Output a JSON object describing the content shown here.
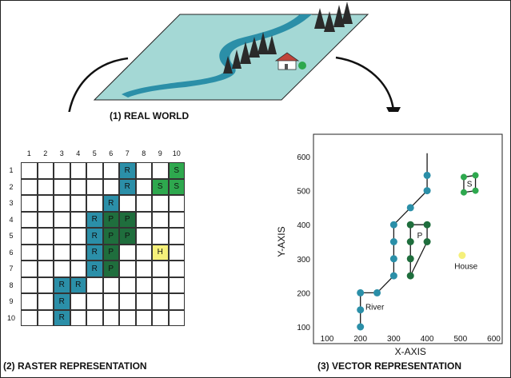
{
  "captions": {
    "real_world": "(1) REAL WORLD",
    "raster": "(2) RASTER REPRESENTATION",
    "vector": "(3) VECTOR REPRESENTATION"
  },
  "raster": {
    "column_labels": [
      "1",
      "2",
      "3",
      "4",
      "5",
      "6",
      "7",
      "8",
      "9",
      "10"
    ],
    "row_labels": [
      "1",
      "2",
      "3",
      "4",
      "5",
      "6",
      "7",
      "8",
      "9",
      "10"
    ],
    "colors": {
      "R": "#2b8fa8",
      "P": "#1f6e3d",
      "S": "#2ea84e",
      "H": "#f5f07a",
      "empty": "#ffffff"
    },
    "cells": [
      {
        "row": 1,
        "col": 7,
        "code": "R"
      },
      {
        "row": 1,
        "col": 10,
        "code": "S"
      },
      {
        "row": 2,
        "col": 7,
        "code": "R"
      },
      {
        "row": 2,
        "col": 9,
        "code": "S"
      },
      {
        "row": 2,
        "col": 10,
        "code": "S"
      },
      {
        "row": 3,
        "col": 6,
        "code": "R"
      },
      {
        "row": 4,
        "col": 5,
        "code": "R"
      },
      {
        "row": 4,
        "col": 6,
        "code": "P"
      },
      {
        "row": 4,
        "col": 7,
        "code": "P"
      },
      {
        "row": 5,
        "col": 5,
        "code": "R"
      },
      {
        "row": 5,
        "col": 6,
        "code": "P"
      },
      {
        "row": 5,
        "col": 7,
        "code": "P"
      },
      {
        "row": 6,
        "col": 5,
        "code": "R"
      },
      {
        "row": 6,
        "col": 6,
        "code": "P"
      },
      {
        "row": 6,
        "col": 9,
        "code": "H"
      },
      {
        "row": 7,
        "col": 5,
        "code": "R"
      },
      {
        "row": 7,
        "col": 6,
        "code": "P"
      },
      {
        "row": 8,
        "col": 3,
        "code": "R"
      },
      {
        "row": 8,
        "col": 4,
        "code": "R"
      },
      {
        "row": 9,
        "col": 3,
        "code": "R"
      },
      {
        "row": 10,
        "col": 3,
        "code": "R"
      }
    ]
  },
  "chart_data": {
    "type": "scatter",
    "xlabel": "X-AXIS",
    "ylabel": "Y-AXIS",
    "xlim": [
      100,
      600
    ],
    "ylim": [
      50,
      650
    ],
    "x_ticks": [
      "100",
      "200",
      "300",
      "400",
      "500",
      "600"
    ],
    "y_ticks": [
      "100",
      "200",
      "300",
      "400",
      "500",
      "600"
    ],
    "grid": false,
    "colors": {
      "river": "#2b8fa8",
      "park": "#1f6e3d",
      "school": "#2ea84e",
      "house": "#f5f07a",
      "line": "#1a1a1a"
    },
    "river": {
      "label": "River",
      "points": [
        [
          200,
          100
        ],
        [
          200,
          150
        ],
        [
          200,
          200
        ],
        [
          250,
          200
        ],
        [
          300,
          250
        ],
        [
          300,
          300
        ],
        [
          300,
          350
        ],
        [
          300,
          400
        ],
        [
          350,
          450
        ],
        [
          400,
          500
        ],
        [
          400,
          545
        ]
      ],
      "line_end": [
        400,
        610
      ]
    },
    "park": {
      "label": "P",
      "points": [
        [
          350,
          400
        ],
        [
          400,
          400
        ],
        [
          400,
          350
        ],
        [
          350,
          250
        ],
        [
          350,
          300
        ],
        [
          350,
          350
        ]
      ]
    },
    "school": {
      "label": "S",
      "points": [
        [
          510,
          540
        ],
        [
          545,
          545
        ],
        [
          545,
          500
        ],
        [
          510,
          495
        ]
      ]
    },
    "house": {
      "label": "House",
      "point": [
        505,
        310
      ]
    }
  }
}
